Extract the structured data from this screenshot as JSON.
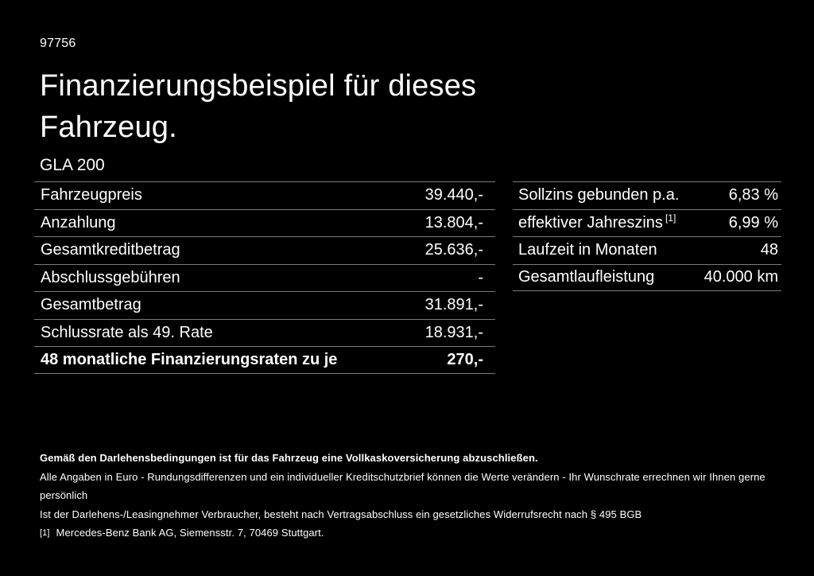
{
  "page": {
    "vehicle_id": "97756",
    "title_line1": "Finanzierungsbeispiel für dieses",
    "title_line2": "Fahrzeug.",
    "model": "GLA 200"
  },
  "left_table": {
    "rows": [
      {
        "label": "Fahrzeugpreis",
        "value": "39.440,-"
      },
      {
        "label": "Anzahlung",
        "value": "13.804,-"
      },
      {
        "label": "Gesamtkreditbetrag",
        "value": "25.636,-"
      },
      {
        "label": "Abschlussgebühren",
        "value": "-"
      },
      {
        "label": "Gesamtbetrag",
        "value": "31.891,-"
      },
      {
        "label": "Schlussrate als 49. Rate",
        "value": "18.931,-"
      },
      {
        "label": "48 monatliche Finanzierungsraten zu je",
        "value": "270,-"
      }
    ]
  },
  "right_table": {
    "rows": [
      {
        "label": "Sollzins gebunden p.a.",
        "value": "6,83 %"
      },
      {
        "label": "effektiver Jahreszins",
        "label_sup": "[1]",
        "value": "6,99 %"
      },
      {
        "label": "Laufzeit in Monaten",
        "value": "48"
      },
      {
        "label": "Gesamtlaufleistung",
        "value": "40.000 km"
      }
    ]
  },
  "footer": {
    "line_bold": "Gemäß den Darlehensbedingungen ist für das Fahrzeug eine Vollkaskoversicherung abzuschließen.",
    "line2": "Alle Angaben in Euro - Rundungsdifferenzen und ein individueller Kreditschutzbrief können die Werte verändern - Ihr Wunschrate errechnen wir Ihnen gerne persönlich",
    "line3": "Ist der Darlehens-/Leasingnehmer Verbraucher, besteht nach Vertragsabschluss ein gesetzliches Widerrufsrecht nach § 495 BGB",
    "footnote_marker": "[1]",
    "footnote_text": "Mercedes-Benz Bank AG, Siemensstr. 7, 70469 Stuttgart."
  },
  "colors": {
    "background": "#000000",
    "text": "#ffffff",
    "divider": "#7a7a7a"
  }
}
